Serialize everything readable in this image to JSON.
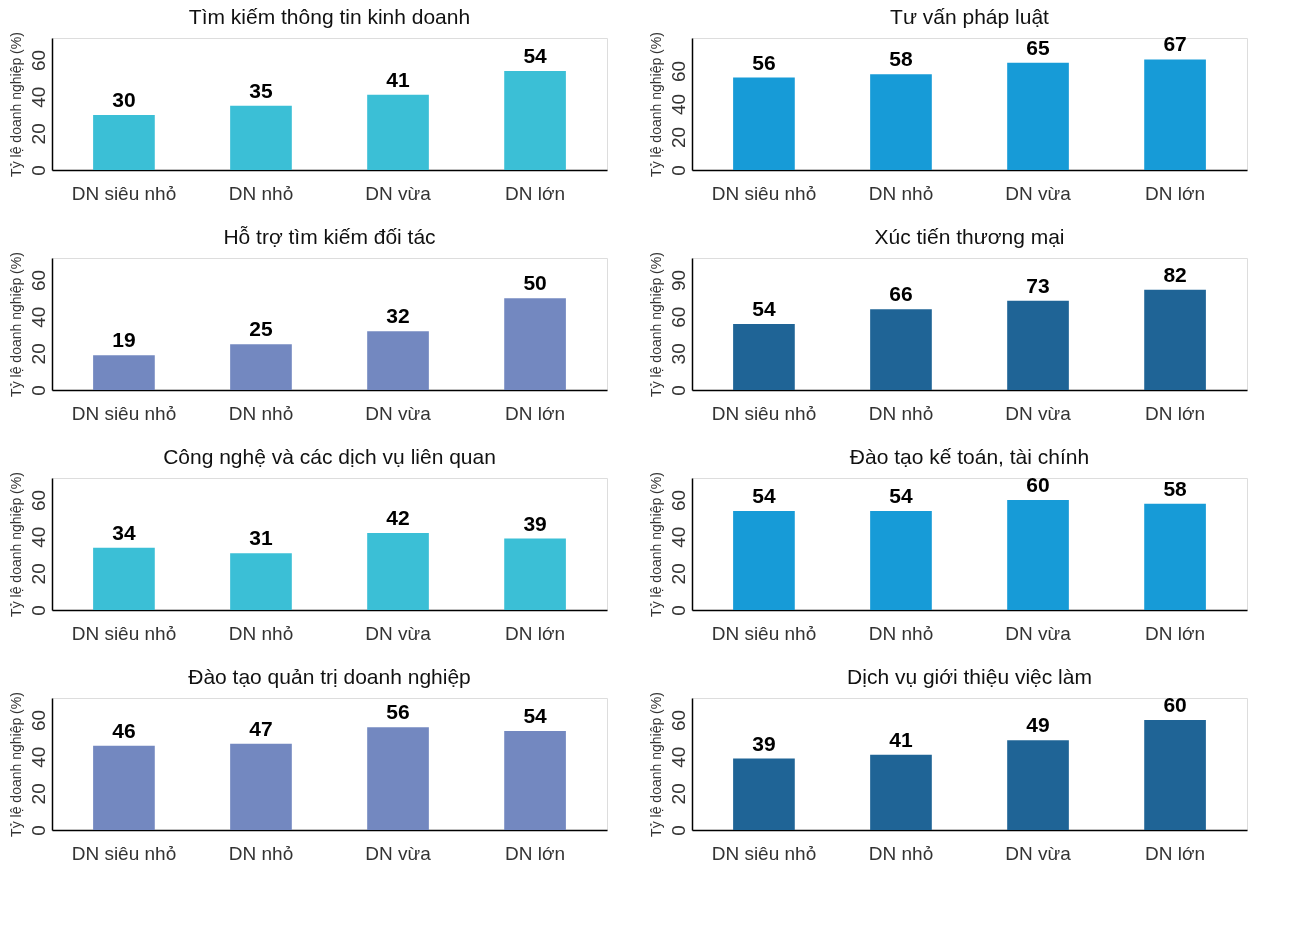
{
  "chart_data": [
    {
      "type": "bar",
      "title": "Tìm kiếm thông tin kinh doanh",
      "ylabel": "Tỷ lệ doanh nghiệp (%)",
      "categories": [
        "DN siêu nhỏ",
        "DN nhỏ",
        "DN vừa",
        "DN lớn"
      ],
      "values": [
        30,
        35,
        41,
        54
      ],
      "color": "#3bbfd6",
      "ylim": [
        0,
        72
      ],
      "yticks": [
        0,
        20,
        40,
        60
      ],
      "data_labels": true,
      "grid": false
    },
    {
      "type": "bar",
      "title": "Tư vấn pháp luật",
      "ylabel": "Tỷ lệ doanh nghiệp (%)",
      "categories": [
        "DN siêu nhỏ",
        "DN nhỏ",
        "DN vừa",
        "DN lớn"
      ],
      "values": [
        56,
        58,
        65,
        67
      ],
      "color": "#179bd7",
      "ylim": [
        0,
        80
      ],
      "yticks": [
        0,
        20,
        40,
        60
      ],
      "data_labels": true,
      "grid": false
    },
    {
      "type": "bar",
      "title": "Hỗ trợ tìm kiếm đối tác",
      "ylabel": "Tỷ lệ doanh nghiệp (%)",
      "categories": [
        "DN siêu nhỏ",
        "DN nhỏ",
        "DN vừa",
        "DN lớn"
      ],
      "values": [
        19,
        25,
        32,
        50
      ],
      "color": "#7388c0",
      "ylim": [
        0,
        72
      ],
      "yticks": [
        0,
        20,
        40,
        60
      ],
      "data_labels": true,
      "grid": false
    },
    {
      "type": "bar",
      "title": "Xúc tiến thương mại",
      "ylabel": "Tỷ lệ doanh nghiệp (%)",
      "categories": [
        "DN siêu nhỏ",
        "DN nhỏ",
        "DN vừa",
        "DN lớn"
      ],
      "values": [
        54,
        66,
        73,
        82
      ],
      "color": "#1f6496",
      "ylim": [
        0,
        108
      ],
      "yticks": [
        0,
        30,
        60,
        90
      ],
      "data_labels": true,
      "grid": false
    },
    {
      "type": "bar",
      "title": "Công nghệ và các dịch vụ liên quan",
      "ylabel": "Tỷ lệ doanh nghiệp (%)",
      "categories": [
        "DN siêu nhỏ",
        "DN nhỏ",
        "DN vừa",
        "DN lớn"
      ],
      "values": [
        34,
        31,
        42,
        39
      ],
      "color": "#3bbfd6",
      "ylim": [
        0,
        72
      ],
      "yticks": [
        0,
        20,
        40,
        60
      ],
      "data_labels": true,
      "grid": false
    },
    {
      "type": "bar",
      "title": "Đào tạo kế toán, tài chính",
      "ylabel": "Tỷ lệ doanh nghiệp (%)",
      "categories": [
        "DN siêu nhỏ",
        "DN nhỏ",
        "DN vừa",
        "DN lớn"
      ],
      "values": [
        54,
        54,
        60,
        58
      ],
      "color": "#179bd7",
      "ylim": [
        0,
        72
      ],
      "yticks": [
        0,
        20,
        40,
        60
      ],
      "data_labels": true,
      "grid": false
    },
    {
      "type": "bar",
      "title": "Đào tạo quản trị doanh nghiệp",
      "ylabel": "Tỷ lệ doanh nghiệp (%)",
      "categories": [
        "DN siêu nhỏ",
        "DN nhỏ",
        "DN vừa",
        "DN lớn"
      ],
      "values": [
        46,
        47,
        56,
        54
      ],
      "color": "#7388c0",
      "ylim": [
        0,
        72
      ],
      "yticks": [
        0,
        20,
        40,
        60
      ],
      "data_labels": true,
      "grid": false
    },
    {
      "type": "bar",
      "title": "Dịch vụ giới thiệu việc làm",
      "ylabel": "Tỷ lệ doanh nghiệp (%)",
      "categories": [
        "DN siêu nhỏ",
        "DN nhỏ",
        "DN vừa",
        "DN lớn"
      ],
      "values": [
        39,
        41,
        49,
        60
      ],
      "color": "#1f6496",
      "ylim": [
        0,
        72
      ],
      "yticks": [
        0,
        20,
        40,
        60
      ],
      "data_labels": true,
      "grid": false
    }
  ]
}
